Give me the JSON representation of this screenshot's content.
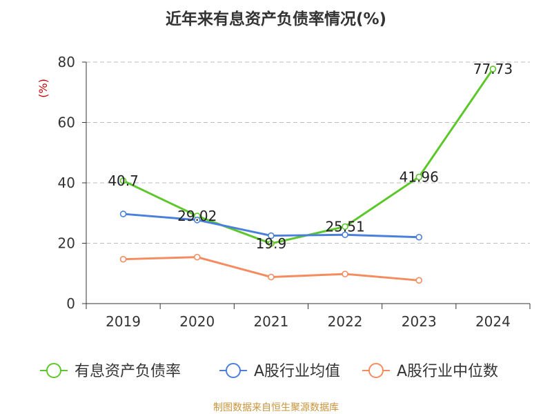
{
  "title": "近年来有息资产负债率情况(%)",
  "source": "制图数据来自恒生聚源数据库",
  "colors": {
    "series1": "#5cc72a",
    "series2": "#4a7fdb",
    "series3": "#f48c5f",
    "ylabel": "#cc0000",
    "source": "#c8943b",
    "grid": "#bbbbbb",
    "axis": "#333333"
  },
  "chart_data": {
    "type": "line",
    "title": "近年来有息资产负债率情况(%)",
    "ylabel": "(%)",
    "xlabel": "",
    "ylim": [
      0,
      80
    ],
    "yticks": [
      0,
      20,
      40,
      60,
      80
    ],
    "categories": [
      "2019",
      "2020",
      "2021",
      "2022",
      "2023",
      "2024"
    ],
    "grid": "horizontal dashed",
    "legend_position": "bottom",
    "series": [
      {
        "name": "有息资产负债率",
        "values": [
          40.7,
          29.02,
          19.9,
          25.51,
          41.96,
          77.73
        ],
        "labels": [
          "40.7",
          "29.02",
          "19.9",
          "25.51",
          "41.96",
          "77.73"
        ]
      },
      {
        "name": "A股行业均值",
        "values": [
          29.7,
          27.7,
          22.5,
          22.8,
          22.0,
          null
        ]
      },
      {
        "name": "A股行业中位数",
        "values": [
          14.7,
          15.4,
          8.8,
          9.8,
          7.7,
          null
        ]
      }
    ]
  }
}
